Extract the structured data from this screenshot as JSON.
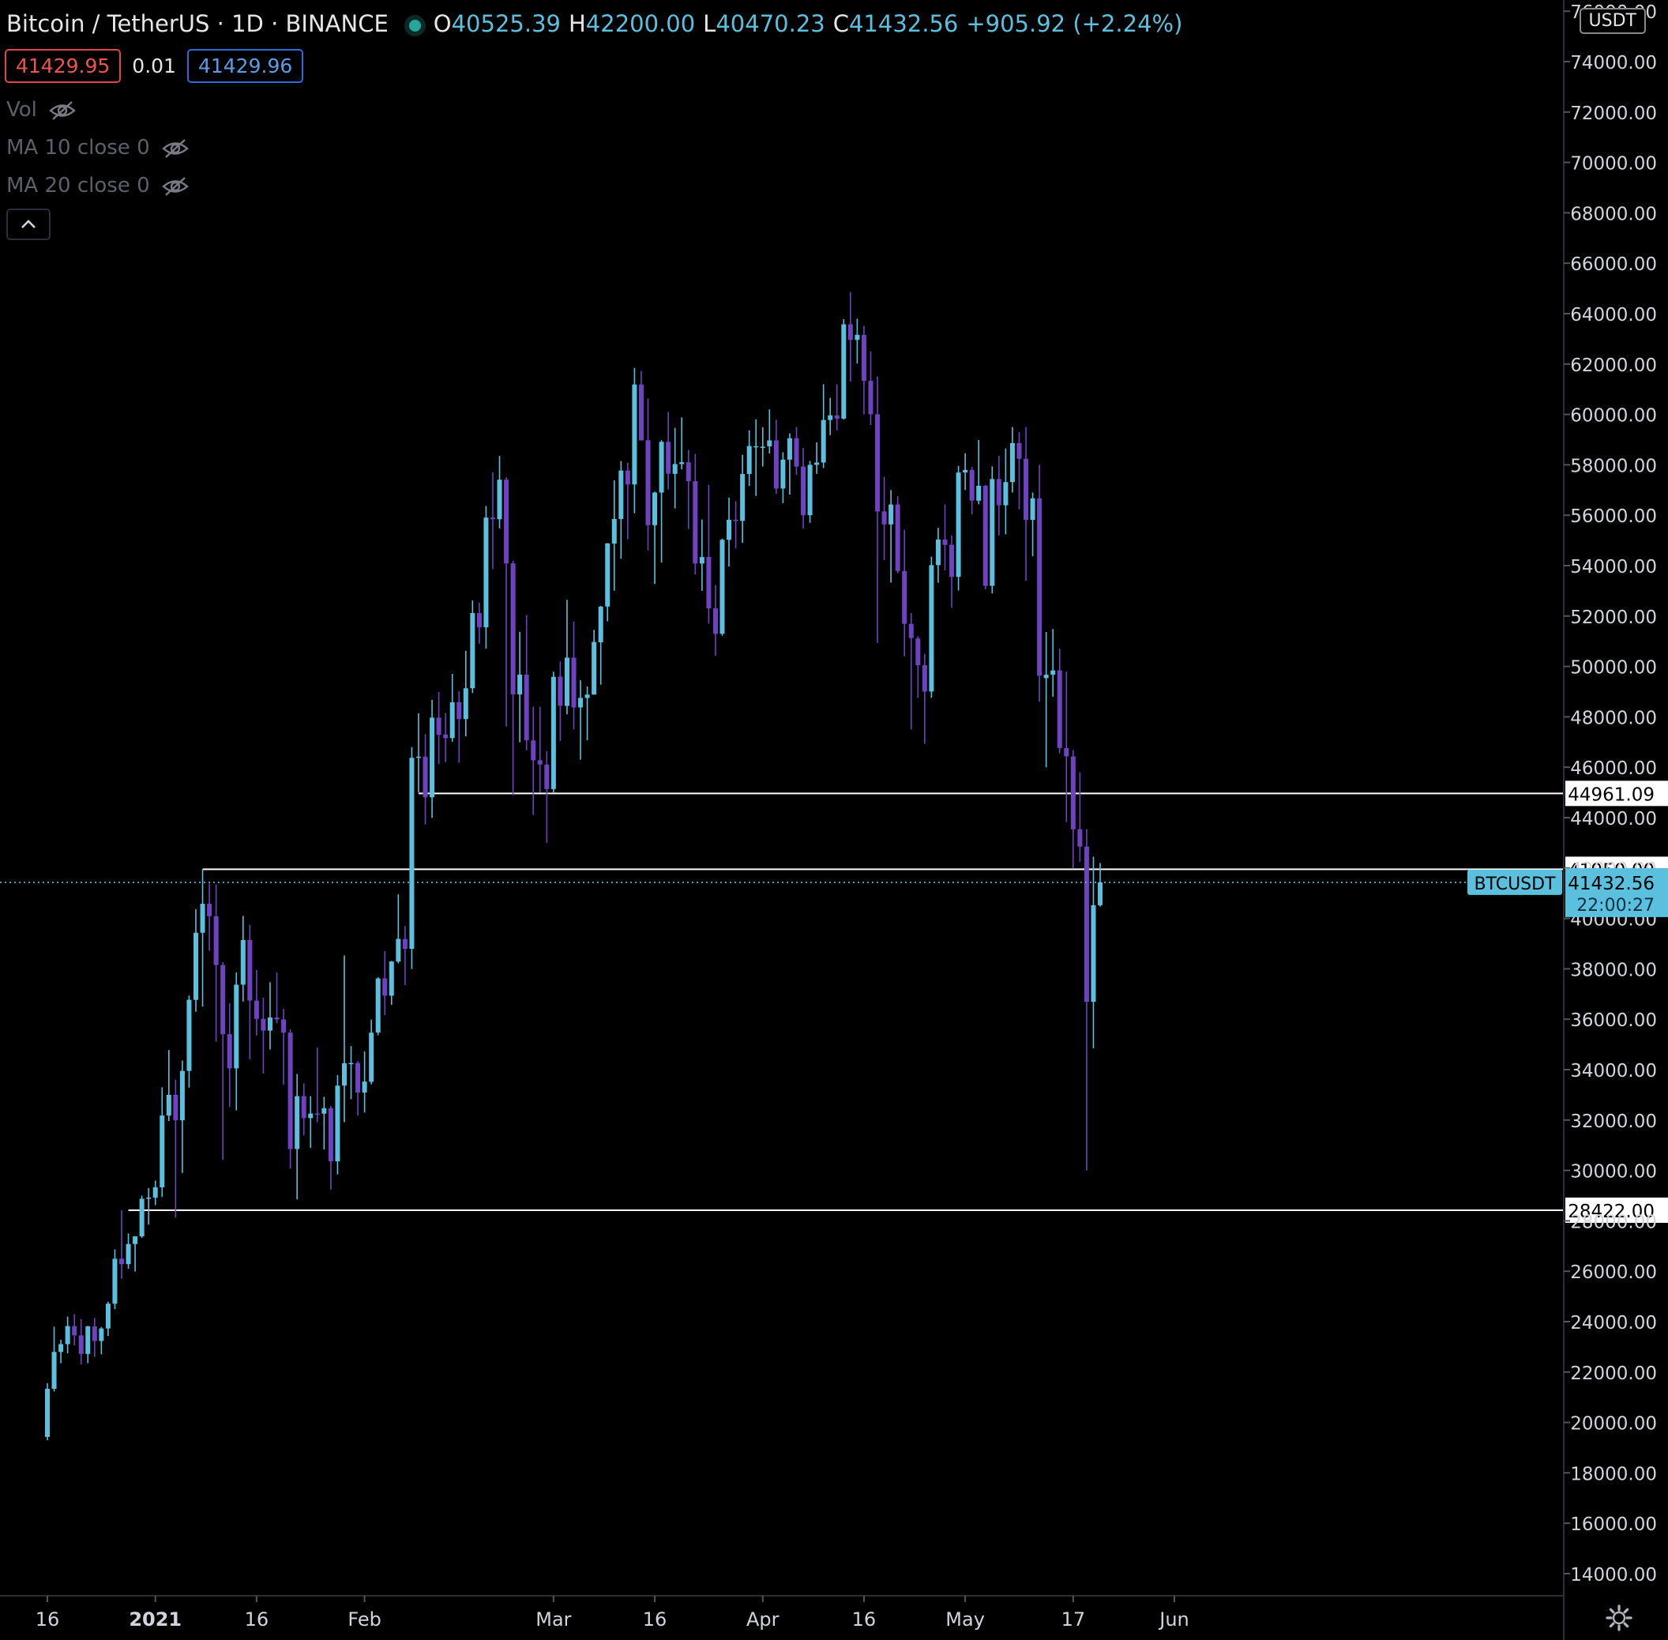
{
  "header": {
    "symbol": "Bitcoin / TetherUS · 1D · BINANCE",
    "open_label": "O",
    "open": "40525.39",
    "high_label": "H",
    "high": "42200.00",
    "low_label": "L",
    "low": "40470.23",
    "close_label": "C",
    "close": "41432.56",
    "change": "+905.92 (+2.24%)"
  },
  "quote": {
    "bid": "41429.95",
    "spread": "0.01",
    "ask": "41429.96"
  },
  "indicators": [
    {
      "label": "Vol"
    },
    {
      "label": "MA 10 close 0"
    },
    {
      "label": "MA 20 close 0"
    }
  ],
  "currency_badge": "USDT",
  "colors": {
    "up": "#5bc0de",
    "down": "#6f42c1",
    "line": "#ffffff",
    "price": "#5bc0de",
    "axis": "#2a2e39"
  },
  "icons": {
    "visibility": "eye-off-icon",
    "collapse": "chevron-up-icon",
    "settings": "gear-icon"
  },
  "chart_data": {
    "type": "candlestick",
    "symbol": "BTCUSDT",
    "timeframe": "1D",
    "ylim": [
      13000,
      76000
    ],
    "y_ticks": [
      14000,
      16000,
      18000,
      20000,
      22000,
      24000,
      26000,
      28000,
      30000,
      32000,
      34000,
      36000,
      38000,
      40000,
      42000,
      44000,
      46000,
      48000,
      50000,
      52000,
      54000,
      56000,
      58000,
      60000,
      62000,
      64000,
      66000,
      68000,
      70000,
      72000,
      74000,
      76000
    ],
    "y_tick_labels": [
      "14000.00",
      "16000.00",
      "18000.00",
      "20000.00",
      "22000.00",
      "24000.00",
      "26000.00",
      "28000.00",
      "30000.00",
      "32000.00",
      "34000.00",
      "36000.00",
      "38000.00",
      "40000.00",
      "42000.00",
      "44000.00",
      "46000.00",
      "48000.00",
      "50000.00",
      "52000.00",
      "54000.00",
      "56000.00",
      "58000.00",
      "60000.00",
      "62000.00",
      "64000.00",
      "66000.00",
      "68000.00",
      "70000.00",
      "72000.00",
      "74000.00",
      "76000.00"
    ],
    "x_ticks": [
      {
        "date": "2020-12-16",
        "label": "16"
      },
      {
        "date": "2021-01-01",
        "label": "2021"
      },
      {
        "date": "2021-01-16",
        "label": "16"
      },
      {
        "date": "2021-02-01",
        "label": "Feb"
      },
      {
        "date": "2021-03-01",
        "label": "Mar"
      },
      {
        "date": "2021-03-16",
        "label": "16"
      },
      {
        "date": "2021-04-01",
        "label": "Apr"
      },
      {
        "date": "2021-04-16",
        "label": "16"
      },
      {
        "date": "2021-05-01",
        "label": "May"
      },
      {
        "date": "2021-05-17",
        "label": "17"
      },
      {
        "date": "2021-06-01",
        "label": "Jun"
      }
    ],
    "x_range": [
      "2020-12-16",
      "2021-06-01"
    ],
    "current_price": {
      "value": 41432.56,
      "label": "41432.56",
      "name": "BTCUSDT",
      "countdown": "22:00:27"
    },
    "horizontal_lines": [
      {
        "value": 44961.09,
        "label": "44961.09",
        "from": "2021-02-09"
      },
      {
        "value": 41950.0,
        "label": "41950.00",
        "from": "2021-01-08"
      },
      {
        "value": 28422.0,
        "label": "28422.00",
        "from": "2020-12-28"
      }
    ],
    "candles": [
      [
        "2020-12-16",
        19426,
        21560,
        19292,
        21335
      ],
      [
        "2020-12-17",
        21335,
        23800,
        21230,
        22797
      ],
      [
        "2020-12-18",
        22797,
        23282,
        22350,
        23107
      ],
      [
        "2020-12-19",
        23107,
        24200,
        22750,
        23821
      ],
      [
        "2020-12-20",
        23821,
        24295,
        23060,
        23455
      ],
      [
        "2020-12-21",
        23455,
        24102,
        22300,
        22720
      ],
      [
        "2020-12-22",
        22720,
        23837,
        22353,
        23810
      ],
      [
        "2020-12-23",
        23810,
        24146,
        22600,
        23232
      ],
      [
        "2020-12-24",
        23232,
        23790,
        22703,
        23729
      ],
      [
        "2020-12-25",
        23729,
        24790,
        23432,
        24712
      ],
      [
        "2020-12-26",
        24712,
        26867,
        24500,
        26493
      ],
      [
        "2020-12-27",
        26493,
        28422,
        25700,
        26281
      ],
      [
        "2020-12-28",
        26281,
        27500,
        26101,
        27079
      ],
      [
        "2020-12-29",
        27079,
        27370,
        25987,
        27385
      ],
      [
        "2020-12-30",
        27385,
        28999,
        27320,
        28875
      ],
      [
        "2020-12-31",
        28875,
        29300,
        27850,
        28923
      ],
      [
        "2021-01-01",
        28923,
        29600,
        28624,
        29332
      ],
      [
        "2021-01-02",
        29332,
        33300,
        28946,
        32178
      ],
      [
        "2021-01-03",
        32178,
        34778,
        31962,
        33000
      ],
      [
        "2021-01-04",
        33000,
        33600,
        28130,
        31988
      ],
      [
        "2021-01-05",
        31989,
        34360,
        29900,
        33949
      ],
      [
        "2021-01-06",
        33950,
        36939,
        33288,
        36770
      ],
      [
        "2021-01-07",
        36770,
        40365,
        36300,
        39432
      ],
      [
        "2021-01-08",
        39433,
        41950,
        36500,
        40582
      ],
      [
        "2021-01-09",
        40586,
        41380,
        38720,
        40088
      ],
      [
        "2021-01-10",
        40088,
        41350,
        35111,
        38150
      ],
      [
        "2021-01-11",
        38150,
        38264,
        30420,
        35404
      ],
      [
        "2021-01-12",
        35410,
        36628,
        32531,
        34051
      ],
      [
        "2021-01-13",
        34050,
        37850,
        32380,
        37371
      ],
      [
        "2021-01-14",
        37372,
        40100,
        36701,
        39144
      ],
      [
        "2021-01-15",
        39145,
        39747,
        34408,
        36742
      ],
      [
        "2021-01-16",
        36737,
        37950,
        35357,
        36013
      ],
      [
        "2021-01-17",
        36013,
        36852,
        33850,
        35548
      ],
      [
        "2021-01-18",
        35548,
        37469,
        34800,
        36070
      ],
      [
        "2021-01-19",
        36069,
        37850,
        35844,
        35995
      ],
      [
        "2021-01-20",
        35992,
        36415,
        33400,
        35468
      ],
      [
        "2021-01-21",
        35468,
        35600,
        30071,
        30850
      ],
      [
        "2021-01-22",
        30852,
        33826,
        28850,
        32945
      ],
      [
        "2021-01-23",
        32950,
        33456,
        31390,
        32078
      ],
      [
        "2021-01-24",
        32078,
        32945,
        30900,
        32259
      ],
      [
        "2021-01-25",
        32259,
        34875,
        31910,
        32254
      ],
      [
        "2021-01-26",
        32254,
        32921,
        30837,
        32467
      ],
      [
        "2021-01-27",
        32464,
        32557,
        29241,
        30366
      ],
      [
        "2021-01-28",
        30362,
        33783,
        29842,
        33364
      ],
      [
        "2021-01-29",
        33368,
        38531,
        31915,
        34252
      ],
      [
        "2021-01-30",
        34246,
        34933,
        32825,
        34262
      ],
      [
        "2021-01-31",
        34262,
        34342,
        32171,
        33092
      ],
      [
        "2021-02-01",
        33092,
        34717,
        32297,
        33526
      ],
      [
        "2021-02-02",
        33517,
        35984,
        33418,
        35466
      ],
      [
        "2021-02-03",
        35472,
        37662,
        35362,
        37618
      ],
      [
        "2021-02-04",
        37620,
        38708,
        36161,
        36936
      ],
      [
        "2021-02-05",
        36936,
        38310,
        36570,
        38290
      ],
      [
        "2021-02-06",
        38289,
        40955,
        38215,
        39186
      ],
      [
        "2021-02-07",
        39181,
        39700,
        37351,
        38795
      ],
      [
        "2021-02-08",
        38795,
        46794,
        37988,
        46374
      ],
      [
        "2021-02-09",
        46374,
        48142,
        45000,
        46420
      ],
      [
        "2021-02-10",
        46420,
        47310,
        43727,
        44807
      ],
      [
        "2021-02-11",
        44807,
        48678,
        43994,
        47969
      ],
      [
        "2021-02-12",
        47968,
        48985,
        46125,
        47287
      ],
      [
        "2021-02-13",
        47298,
        48150,
        46202,
        47153
      ],
      [
        "2021-02-14",
        47156,
        49707,
        47014,
        48577
      ],
      [
        "2021-02-15",
        48580,
        49010,
        46174,
        47911
      ],
      [
        "2021-02-16",
        47911,
        50620,
        47225,
        49133
      ],
      [
        "2021-02-17",
        49134,
        52618,
        48947,
        52119
      ],
      [
        "2021-02-18",
        52117,
        52530,
        50901,
        51552
      ],
      [
        "2021-02-19",
        51553,
        56368,
        50710,
        55906
      ],
      [
        "2021-02-20",
        55906,
        57700,
        53863,
        55841
      ],
      [
        "2021-02-21",
        55841,
        58352,
        55477,
        57408
      ],
      [
        "2021-02-22",
        57412,
        57508,
        47622,
        54087
      ],
      [
        "2021-02-23",
        54088,
        54183,
        44892,
        48892
      ],
      [
        "2021-02-24",
        48891,
        51374,
        46988,
        49676
      ],
      [
        "2021-02-25",
        49677,
        52041,
        46674,
        47073
      ],
      [
        "2021-02-26",
        47063,
        48400,
        44106,
        46276
      ],
      [
        "2021-02-27",
        46278,
        48394,
        45000,
        46106
      ],
      [
        "2021-02-28",
        46104,
        46638,
        43000,
        45135
      ],
      [
        "2021-03-01",
        45134,
        49791,
        45000,
        49587
      ],
      [
        "2021-03-02",
        49596,
        50200,
        47047,
        48440
      ],
      [
        "2021-03-03",
        48436,
        52640,
        48100,
        50349
      ],
      [
        "2021-03-04",
        50349,
        51773,
        47500,
        48374
      ],
      [
        "2021-03-05",
        48374,
        49448,
        46300,
        48751
      ],
      [
        "2021-03-06",
        48747,
        49200,
        47070,
        48882
      ],
      [
        "2021-03-07",
        48882,
        51450,
        48882,
        50971
      ],
      [
        "2021-03-08",
        50959,
        52402,
        49274,
        52375
      ],
      [
        "2021-03-09",
        52376,
        54895,
        51789,
        54884
      ],
      [
        "2021-03-10",
        54875,
        57387,
        53005,
        55851
      ],
      [
        "2021-03-11",
        55851,
        58150,
        54272,
        57773
      ],
      [
        "2021-03-12",
        57773,
        58081,
        55050,
        57221
      ],
      [
        "2021-03-13",
        57222,
        61844,
        56078,
        61188
      ],
      [
        "2021-03-14",
        61188,
        61724,
        58967,
        58968
      ],
      [
        "2021-03-15",
        58976,
        60633,
        54600,
        55605
      ],
      [
        "2021-03-16",
        55605,
        56938,
        53271,
        56900
      ],
      [
        "2021-03-17",
        56900,
        58978,
        54123,
        58912
      ],
      [
        "2021-03-18",
        58912,
        60100,
        57023,
        57648
      ],
      [
        "2021-03-19",
        57641,
        59468,
        56270,
        58030
      ],
      [
        "2021-03-20",
        58030,
        59880,
        57820,
        58102
      ],
      [
        "2021-03-21",
        58100,
        58589,
        55450,
        57351
      ],
      [
        "2021-03-22",
        57351,
        58430,
        53650,
        54083
      ],
      [
        "2021-03-23",
        54083,
        55830,
        53000,
        54340
      ],
      [
        "2021-03-24",
        54342,
        57200,
        51700,
        52303
      ],
      [
        "2021-03-25",
        52303,
        53230,
        50427,
        51293
      ],
      [
        "2021-03-26",
        51293,
        55073,
        51214,
        55025
      ],
      [
        "2021-03-27",
        55025,
        56700,
        53967,
        55817
      ],
      [
        "2021-03-28",
        55817,
        56559,
        54691,
        55777
      ],
      [
        "2021-03-29",
        55777,
        58400,
        54900,
        57635
      ],
      [
        "2021-03-30",
        57635,
        59368,
        57166,
        58746
      ],
      [
        "2021-03-31",
        58740,
        59800,
        56769,
        58740
      ],
      [
        "2021-04-01",
        58720,
        59490,
        57935,
        58720
      ],
      [
        "2021-04-02",
        58736,
        60200,
        58450,
        58969
      ],
      [
        "2021-04-03",
        58970,
        59791,
        56852,
        57059
      ],
      [
        "2021-04-04",
        57059,
        58500,
        56478,
        58206
      ],
      [
        "2021-04-05",
        58206,
        59250,
        56817,
        59054
      ],
      [
        "2021-04-06",
        59057,
        59500,
        57600,
        57933
      ],
      [
        "2021-04-07",
        57933,
        58670,
        55473,
        56000
      ],
      [
        "2021-04-08",
        56000,
        58153,
        55700,
        58000
      ],
      [
        "2021-04-09",
        58000,
        58894,
        57640,
        58090
      ],
      [
        "2021-04-10",
        58092,
        61200,
        57872,
        59779
      ],
      [
        "2021-04-11",
        59778,
        60658,
        59177,
        59965
      ],
      [
        "2021-04-12",
        59964,
        61199,
        59369,
        59832
      ],
      [
        "2021-04-13",
        59835,
        63777,
        59800,
        63575
      ],
      [
        "2021-04-14",
        63576,
        64854,
        61300,
        62960
      ],
      [
        "2021-04-15",
        62959,
        63800,
        62020,
        63159
      ],
      [
        "2021-04-16",
        63158,
        63520,
        60000,
        61334
      ],
      [
        "2021-04-17",
        61334,
        62506,
        59580,
        60006
      ],
      [
        "2021-04-18",
        60006,
        61500,
        50931,
        56150
      ],
      [
        "2021-04-19",
        56151,
        57526,
        54221,
        55633
      ],
      [
        "2021-04-20",
        55634,
        57000,
        53329,
        56425
      ],
      [
        "2021-04-21",
        56425,
        56757,
        53695,
        53787
      ],
      [
        "2021-04-22",
        53787,
        55410,
        50400,
        51690
      ],
      [
        "2021-04-23",
        51690,
        52120,
        47500,
        51125
      ],
      [
        "2021-04-24",
        51110,
        51200,
        48750,
        50047
      ],
      [
        "2021-04-25",
        50047,
        50500,
        46930,
        49004
      ],
      [
        "2021-04-26",
        49004,
        54356,
        48753,
        54021
      ],
      [
        "2021-04-27",
        54021,
        55500,
        53321,
        55034
      ],
      [
        "2021-04-28",
        55033,
        56428,
        53813,
        54824
      ],
      [
        "2021-04-29",
        54825,
        55200,
        52330,
        53555
      ],
      [
        "2021-04-30",
        53555,
        57963,
        53013,
        57694
      ],
      [
        "2021-05-01",
        57697,
        58458,
        57000,
        57797
      ],
      [
        "2021-05-02",
        57797,
        57911,
        56035,
        56578
      ],
      [
        "2021-05-03",
        56578,
        58981,
        56435,
        57169
      ],
      [
        "2021-05-04",
        57169,
        57200,
        53057,
        53200
      ],
      [
        "2021-05-05",
        53200,
        57939,
        52900,
        57436
      ],
      [
        "2021-05-06",
        57436,
        58360,
        55200,
        56393
      ],
      [
        "2021-05-07",
        56393,
        58650,
        55241,
        57314
      ],
      [
        "2021-05-08",
        57315,
        59500,
        56900,
        58862
      ],
      [
        "2021-05-09",
        58866,
        59300,
        56235,
        58240
      ],
      [
        "2021-05-10",
        58240,
        59500,
        53400,
        55816
      ],
      [
        "2021-05-11",
        55816,
        56900,
        54370,
        56670
      ],
      [
        "2021-05-12",
        56670,
        58000,
        48600,
        49631
      ],
      [
        "2021-05-13",
        49537,
        51367,
        46000,
        49670
      ],
      [
        "2021-05-14",
        49671,
        51483,
        48800,
        49841
      ],
      [
        "2021-05-15",
        49845,
        50700,
        46555,
        46762
      ],
      [
        "2021-05-16",
        46762,
        49795,
        43825,
        46431
      ],
      [
        "2021-05-17",
        46426,
        46686,
        42001,
        43538
      ],
      [
        "2021-05-18",
        43538,
        45799,
        42250,
        42849
      ],
      [
        "2021-05-19",
        42850,
        43547,
        30000,
        36690
      ],
      [
        "2021-05-20",
        36691,
        42451,
        34850,
        40526
      ],
      [
        "2021-05-21",
        40525,
        42200,
        40470,
        41432
      ]
    ]
  }
}
